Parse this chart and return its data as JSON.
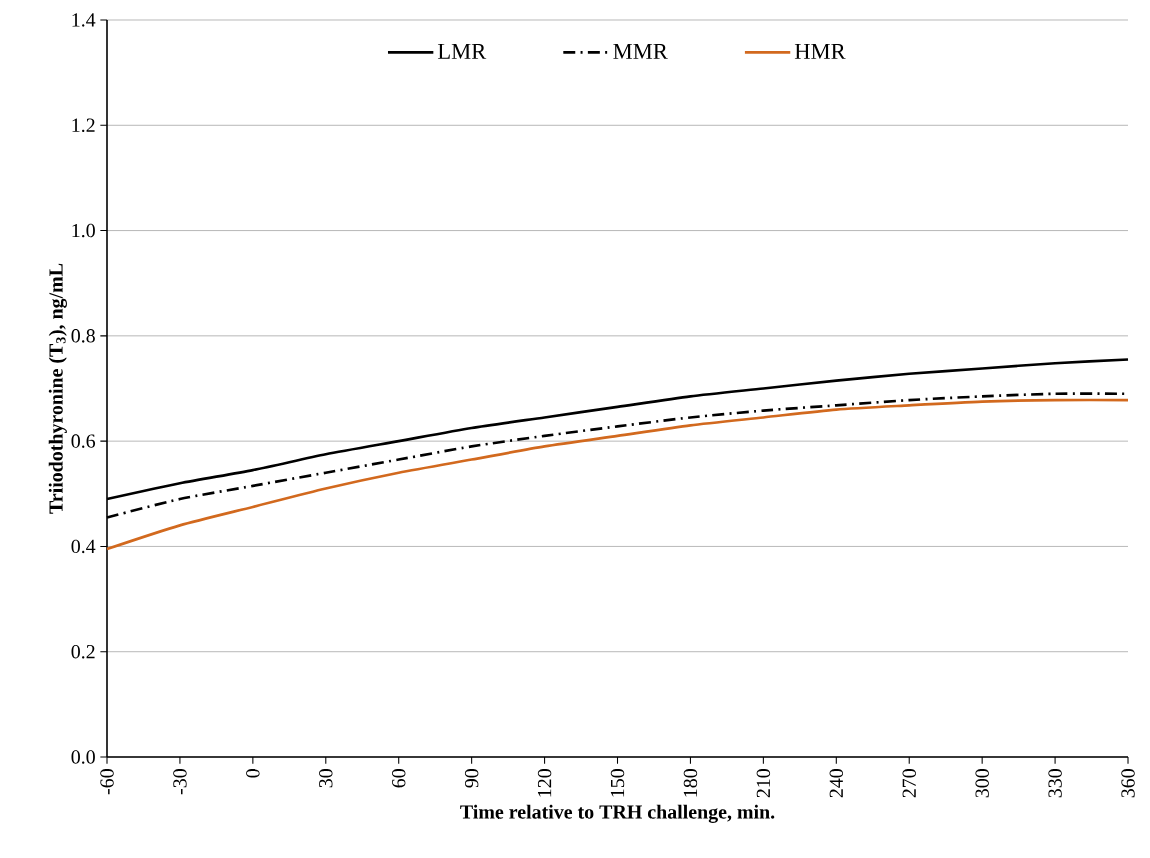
{
  "chart_data": {
    "type": "line",
    "xlabel": "Time relative to TRH challenge, min.",
    "ylabel": "Triiodothyronine  (T$_{3}$), ng/mL",
    "x": [
      -60,
      -30,
      0,
      30,
      60,
      90,
      120,
      150,
      180,
      210,
      240,
      270,
      300,
      330,
      360
    ],
    "series": [
      {
        "name": "LMR",
        "color": "#000000",
        "line_style": "solid",
        "values": [
          0.49,
          0.52,
          0.545,
          0.575,
          0.6,
          0.625,
          0.645,
          0.665,
          0.685,
          0.7,
          0.715,
          0.728,
          0.738,
          0.748,
          0.755
        ]
      },
      {
        "name": "MMR",
        "color": "#000000",
        "line_style": "dashdot",
        "values": [
          0.455,
          0.49,
          0.515,
          0.54,
          0.565,
          0.59,
          0.61,
          0.628,
          0.645,
          0.658,
          0.668,
          0.678,
          0.685,
          0.69,
          0.69
        ]
      },
      {
        "name": "HMR",
        "color": "#d2691e",
        "line_style": "solid",
        "values": [
          0.395,
          0.44,
          0.475,
          0.51,
          0.54,
          0.565,
          0.59,
          0.61,
          0.63,
          0.645,
          0.66,
          0.668,
          0.675,
          0.678,
          0.678
        ]
      }
    ],
    "xlim": [
      -60,
      360
    ],
    "xticks": [
      -60,
      -30,
      0,
      30,
      60,
      90,
      120,
      150,
      180,
      210,
      240,
      270,
      300,
      330,
      360
    ],
    "ylim": [
      0,
      1.4
    ],
    "yticks": [
      {
        "value": 0,
        "label": "0.0"
      },
      {
        "value": 0.2,
        "label": "0.2"
      },
      {
        "value": 0.4,
        "label": "0.4"
      },
      {
        "value": 0.6,
        "label": "0.6"
      },
      {
        "value": 0.8,
        "label": "0.8"
      },
      {
        "value": 1.0,
        "label": "1.0"
      },
      {
        "value": 1.2,
        "label": "1.2"
      },
      {
        "value": 1.4,
        "label": "1.4"
      }
    ],
    "grid": "y",
    "legend": "top",
    "marker": "none"
  }
}
